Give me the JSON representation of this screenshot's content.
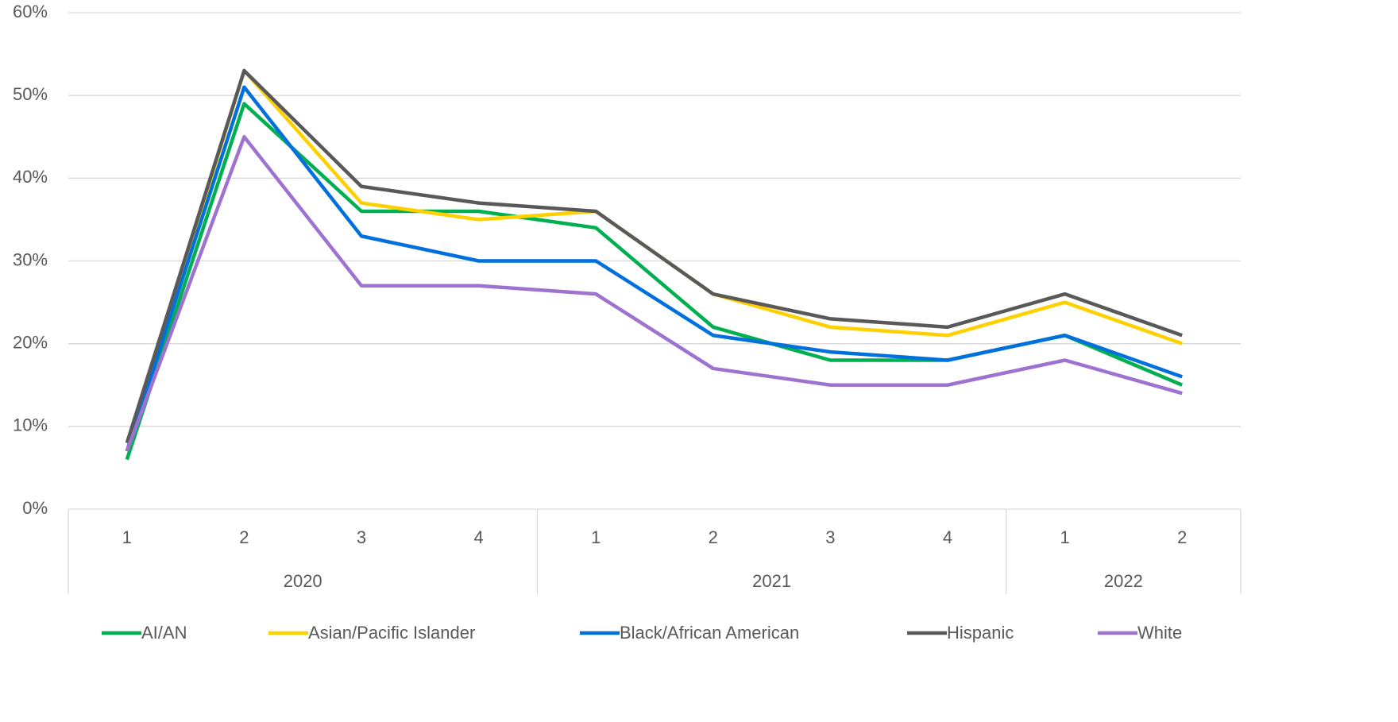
{
  "chart_data": {
    "type": "line",
    "groups": [
      {
        "label": "2020",
        "categories": [
          "1",
          "2",
          "3",
          "4"
        ]
      },
      {
        "label": "2021",
        "categories": [
          "1",
          "2",
          "3",
          "4"
        ]
      },
      {
        "label": "2022",
        "categories": [
          "1",
          "2"
        ]
      }
    ],
    "series": [
      {
        "name": "AI/AN",
        "color": "#00b050",
        "values": [
          6,
          49,
          36,
          36,
          34,
          22,
          18,
          18,
          21,
          15
        ]
      },
      {
        "name": "Asian/Pacific Islander",
        "color": "#ffd000",
        "values": [
          7,
          53,
          37,
          35,
          36,
          26,
          22,
          21,
          25,
          20
        ]
      },
      {
        "name": "Black/African American",
        "color": "#0070dd",
        "values": [
          7,
          51,
          33,
          30,
          30,
          21,
          19,
          18,
          21,
          16
        ]
      },
      {
        "name": "Hispanic",
        "color": "#595959",
        "values": [
          8,
          53,
          39,
          37,
          36,
          26,
          23,
          22,
          26,
          21
        ]
      },
      {
        "name": "White",
        "color": "#9e72d0",
        "values": [
          7,
          45,
          27,
          27,
          26,
          17,
          15,
          15,
          18,
          14
        ]
      }
    ],
    "ylim": [
      0,
      60
    ],
    "yticks": [
      {
        "value": 0,
        "label": "0%"
      },
      {
        "value": 10,
        "label": "10%"
      },
      {
        "value": 20,
        "label": "20%"
      },
      {
        "value": 30,
        "label": "30%"
      },
      {
        "value": 40,
        "label": "40%"
      },
      {
        "value": 50,
        "label": "50%"
      },
      {
        "value": 60,
        "label": "60%"
      }
    ],
    "grid": true,
    "legend": "bottom"
  }
}
